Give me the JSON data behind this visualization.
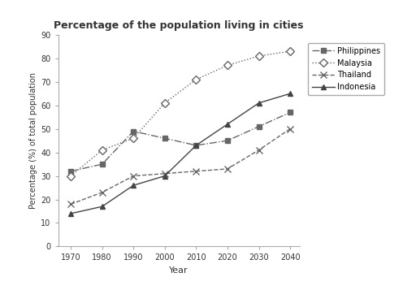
{
  "title": "Percentage of the population living in cities",
  "xlabel": "Year",
  "ylabel": "Percentage (%) of total population",
  "years": [
    1970,
    1980,
    1990,
    2000,
    2010,
    2020,
    2030,
    2040
  ],
  "series": {
    "Philippines": {
      "values": [
        32,
        35,
        49,
        46,
        43,
        45,
        51,
        57
      ],
      "color": "#666666",
      "linestyle": "-.",
      "marker": "s",
      "markersize": 4,
      "label": "Philippines",
      "markerfilled": true
    },
    "Malaysia": {
      "values": [
        30,
        41,
        46,
        61,
        71,
        77,
        81,
        83
      ],
      "color": "#666666",
      "linestyle": ":",
      "marker": "D",
      "markersize": 5,
      "label": "Malaysia",
      "markerfilled": false
    },
    "Thailand": {
      "values": [
        18,
        23,
        30,
        31,
        32,
        33,
        41,
        50
      ],
      "color": "#666666",
      "linestyle": "--",
      "marker": "x",
      "markersize": 6,
      "label": "Thailand",
      "markerfilled": true
    },
    "Indonesia": {
      "values": [
        14,
        17,
        26,
        30,
        43,
        52,
        61,
        65
      ],
      "color": "#444444",
      "linestyle": "-",
      "marker": "^",
      "markersize": 5,
      "label": "Indonesia",
      "markerfilled": true
    }
  },
  "ylim": [
    0,
    90
  ],
  "yticks": [
    0,
    10,
    20,
    30,
    40,
    50,
    60,
    70,
    80,
    90
  ],
  "legend_order": [
    "Philippines",
    "Malaysia",
    "Thailand",
    "Indonesia"
  ],
  "background_color": "#ffffff"
}
